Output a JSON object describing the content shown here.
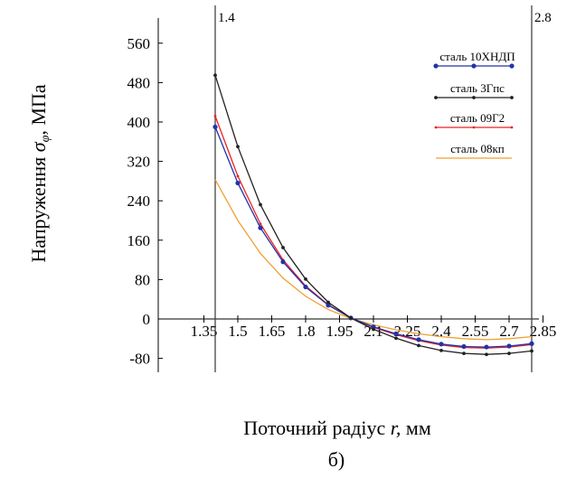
{
  "chart_data": {
    "type": "line",
    "ylabel": "Напруження σ φ , МПа",
    "ylabel_main": "Напруження ",
    "ylabel_sigma": "σ",
    "ylabel_sub": "φ",
    "ylabel_unit": ", МПа",
    "xlabel": "Поточний радіус r, мм",
    "xlabel_main": "Поточний радіус ",
    "xlabel_var": "r,",
    "xlabel_unit": " мм",
    "caption": "б)",
    "xlim": [
      1.3,
      2.85
    ],
    "ylim": [
      -100,
      600
    ],
    "x_ticks": [
      "1.35",
      "1.5",
      "1.65",
      "1.8",
      "1.95",
      "2.1",
      "2.25",
      "2.4",
      "2.55",
      "2.7",
      "2.85"
    ],
    "y_ticks": [
      "560",
      "480",
      "400",
      "320",
      "240",
      "160",
      "80",
      "0",
      "-80"
    ],
    "vlines": [
      {
        "x": 1.4,
        "label": "1.4"
      },
      {
        "x": 2.8,
        "label": "2.8"
      }
    ],
    "legend_position": "top-right",
    "series": [
      {
        "name": "сталь 10ХНДП",
        "color": "#2233aa",
        "marker": "circle",
        "x": [
          1.4,
          1.5,
          1.6,
          1.7,
          1.8,
          1.9,
          2.0,
          2.1,
          2.2,
          2.3,
          2.4,
          2.5,
          2.6,
          2.7,
          2.8
        ],
        "y": [
          390,
          276,
          185,
          116,
          65,
          28,
          2,
          -16,
          -30,
          -42,
          -51,
          -56,
          -57,
          -55,
          -50
        ]
      },
      {
        "name": "сталь 3Гпс",
        "color": "#222222",
        "marker": "dot",
        "x": [
          1.4,
          1.5,
          1.6,
          1.7,
          1.8,
          1.9,
          2.0,
          2.1,
          2.2,
          2.3,
          2.4,
          2.5,
          2.6,
          2.7,
          2.8
        ],
        "y": [
          495,
          350,
          232,
          145,
          81,
          34,
          2,
          -21,
          -39,
          -54,
          -64,
          -70,
          -72,
          -70,
          -65
        ]
      },
      {
        "name": "сталь 09Г2",
        "color": "#ee2222",
        "marker": "small",
        "x": [
          1.4,
          1.5,
          1.6,
          1.7,
          1.8,
          1.9,
          2.0,
          2.1,
          2.2,
          2.3,
          2.4,
          2.5,
          2.6,
          2.7,
          2.8
        ],
        "y": [
          412,
          290,
          193,
          120,
          67,
          29,
          2,
          -17,
          -32,
          -44,
          -53,
          -58,
          -59,
          -57,
          -52
        ]
      },
      {
        "name": "сталь 08кп",
        "color": "#f0a030",
        "marker": "none",
        "x": [
          1.4,
          1.5,
          1.6,
          1.7,
          1.8,
          1.9,
          2.0,
          2.1,
          2.2,
          2.3,
          2.4,
          2.5,
          2.6,
          2.7,
          2.8
        ],
        "y": [
          283,
          200,
          133,
          83,
          46,
          19,
          1,
          -12,
          -22,
          -30,
          -36,
          -40,
          -42,
          -40,
          -36
        ]
      }
    ]
  }
}
